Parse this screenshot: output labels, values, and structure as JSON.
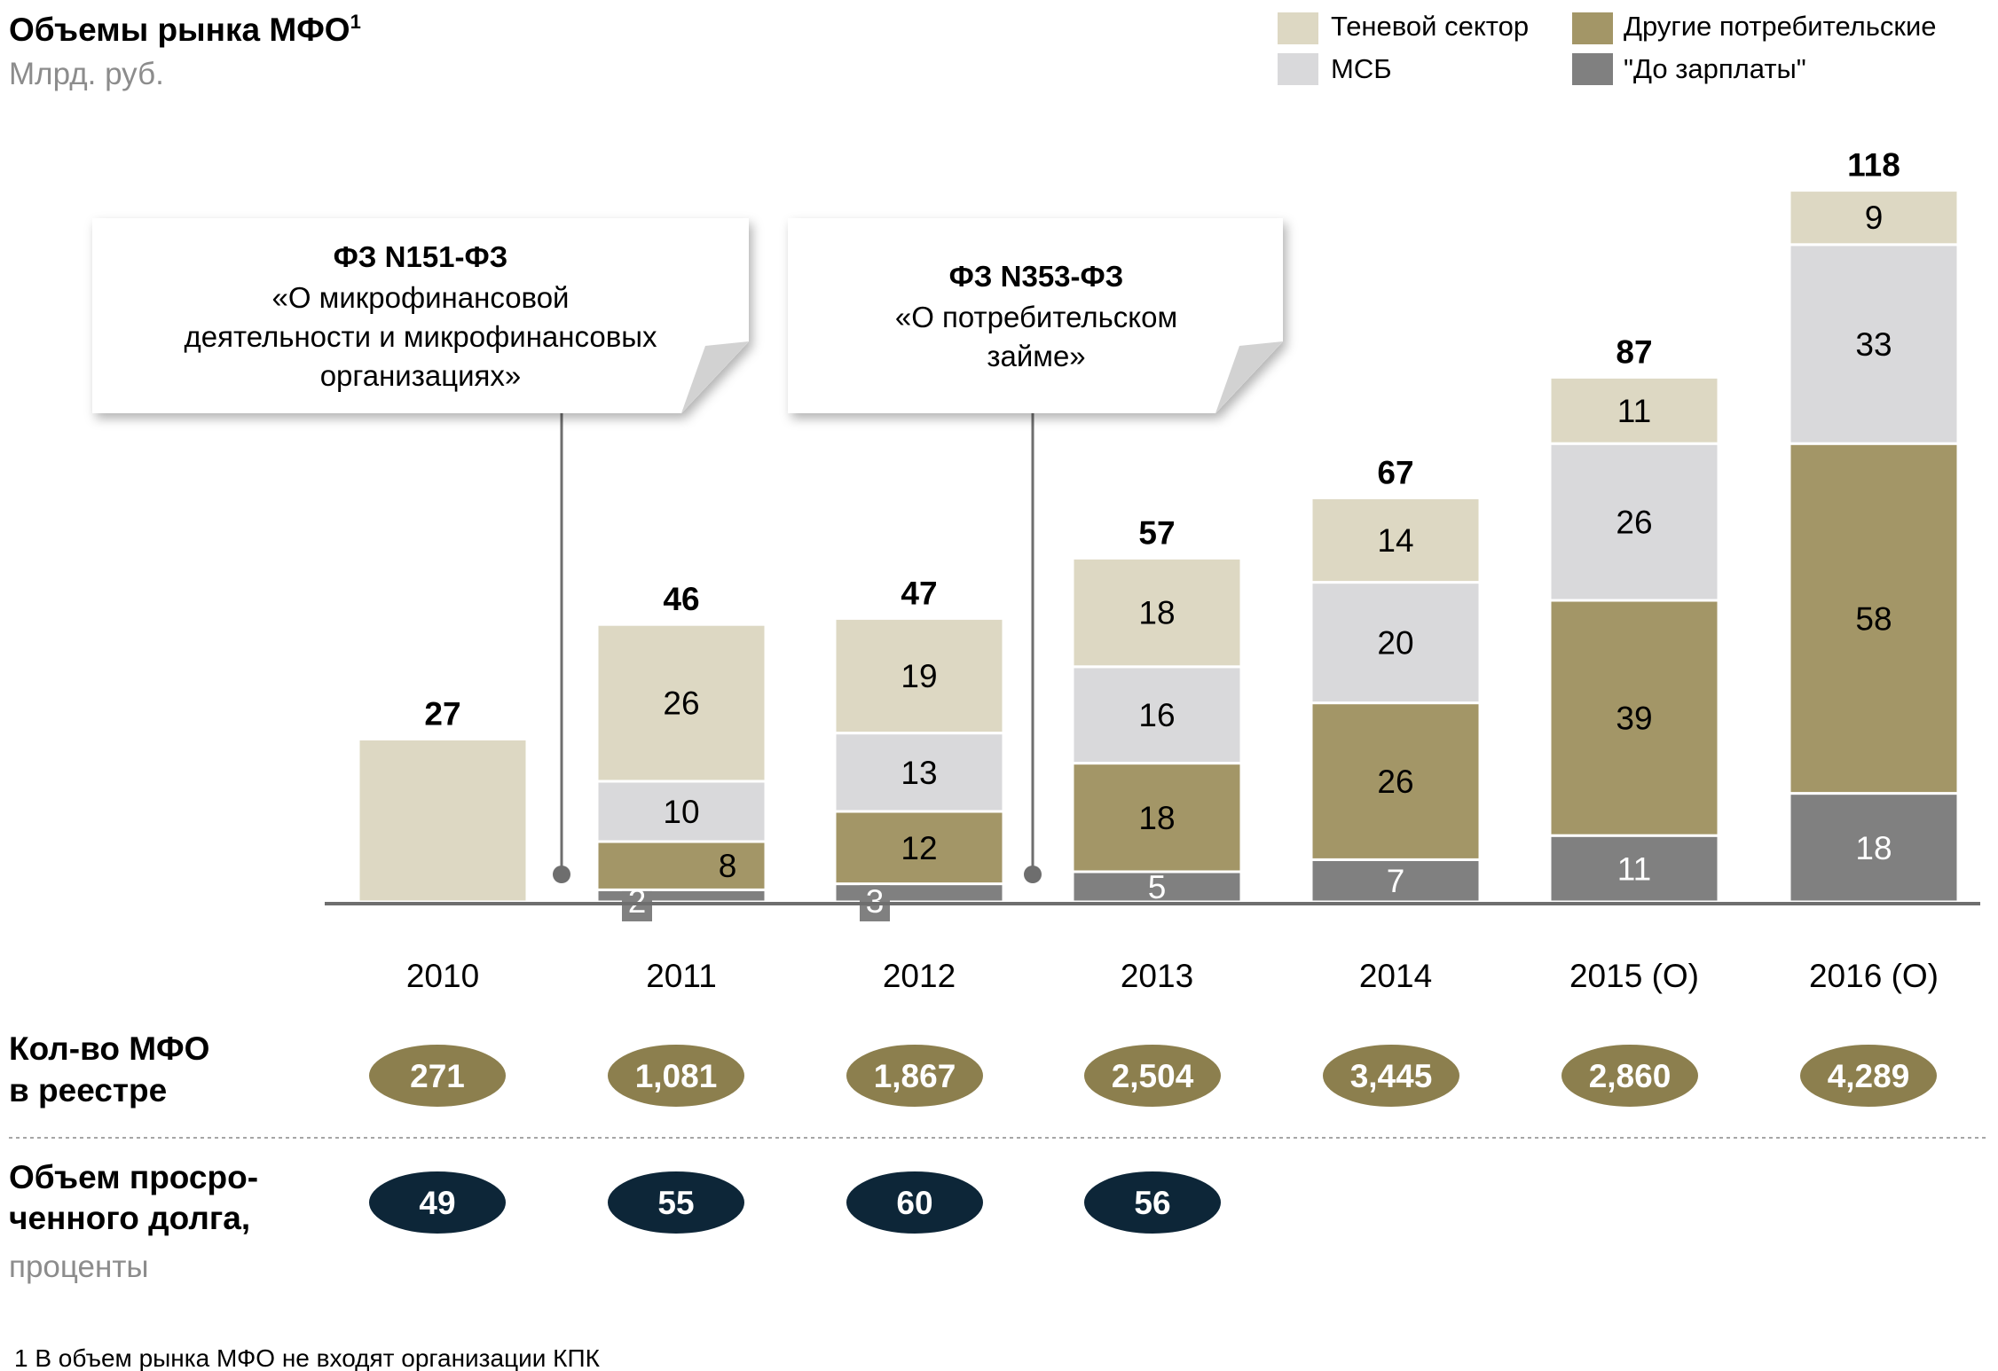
{
  "header": {
    "title": "Объемы рынка МФО",
    "title_sup": "1",
    "subtitle": "Млрд. руб."
  },
  "legend": {
    "placement": "top-right",
    "items": [
      {
        "label": "Теневой сектор",
        "color": "#DDD8C3"
      },
      {
        "label": "Другие потребительские",
        "color": "#A39667"
      },
      {
        "label": "МСБ",
        "color": "#D9D9DB"
      },
      {
        "label": "\"До зарплаты\"",
        "color": "#808080"
      }
    ]
  },
  "callouts": [
    {
      "lines": [
        "ФЗ N151-ФЗ",
        "«О микрофинансовой",
        "деятельности  и микрофинансовых",
        "организациях»"
      ],
      "year": "2010–2011"
    },
    {
      "lines": [
        "ФЗ N353-ФЗ",
        "«О потребительском",
        "займе»"
      ],
      "year": "2012–2013"
    }
  ],
  "chart_data": {
    "type": "bar",
    "stacked": true,
    "categories": [
      "2010",
      "2011",
      "2012",
      "2013",
      "2014",
      "2015  (О)",
      "2016 (О)"
    ],
    "totals": [
      27,
      46,
      47,
      57,
      67,
      87,
      118
    ],
    "series": [
      {
        "name": "\"До зарплаты\"",
        "color": "#808080",
        "values": [
          0,
          2,
          3,
          5,
          7,
          11,
          18
        ]
      },
      {
        "name": "Другие потребительские",
        "color": "#A39667",
        "values": [
          0,
          8,
          12,
          18,
          26,
          39,
          58
        ]
      },
      {
        "name": "МСБ",
        "color": "#D9D9DB",
        "values": [
          0,
          10,
          13,
          16,
          20,
          26,
          33
        ]
      },
      {
        "name": "Теневой сектор",
        "color": "#DDD8C3",
        "values": [
          27,
          26,
          19,
          18,
          14,
          11,
          9
        ]
      }
    ],
    "ylim": [
      0,
      125
    ],
    "grid": false
  },
  "rows": {
    "mfo_count": {
      "label_lines": [
        "Кол-во МФО",
        "в реестре"
      ],
      "color": "#8C7F4E",
      "values": [
        "271",
        "1,081",
        "1,867",
        "2,504",
        "3,445",
        "2,860",
        "4,289"
      ]
    },
    "overdue": {
      "label_lines": [
        "Объем просро-",
        "ченного долга,"
      ],
      "label_sub": "проценты",
      "color": "#0D2638",
      "values": [
        "49",
        "55",
        "60",
        "56"
      ]
    }
  },
  "footnote": "1  В объем рынка МФО не входят организации КПК"
}
